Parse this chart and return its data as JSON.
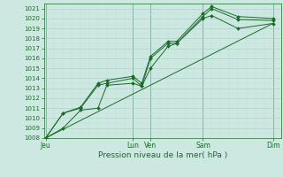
{
  "bg_color": "#cce8e0",
  "grid_color_major": "#aacccc",
  "grid_color_minor": "#bbdddd",
  "line_color": "#1a6b2a",
  "marker_color": "#1a6b2a",
  "xlabel": "Pression niveau de la mer( hPa )",
  "ylim": [
    1008,
    1021.5
  ],
  "yticks": [
    1008,
    1009,
    1010,
    1011,
    1012,
    1013,
    1014,
    1015,
    1016,
    1017,
    1018,
    1019,
    1020,
    1021
  ],
  "xtick_labels": [
    "Jeu",
    "",
    "Lun",
    "Ven",
    "",
    "Sam",
    "",
    "Dim"
  ],
  "xtick_positions": [
    0,
    3,
    5,
    6,
    8,
    9,
    11,
    13
  ],
  "vline_positions": [
    0,
    5,
    6,
    9,
    13
  ],
  "xlim": [
    -0.1,
    13.5
  ],
  "series1_x": [
    0,
    1,
    2,
    3,
    3.5,
    5,
    5.5,
    6,
    7,
    7.5,
    9,
    9.5,
    11,
    13
  ],
  "series1_y": [
    1008.0,
    1009.0,
    1010.8,
    1011.0,
    1013.3,
    1013.5,
    1013.2,
    1015.0,
    1017.2,
    1017.5,
    1020.0,
    1020.3,
    1019.0,
    1019.5
  ],
  "series2_x": [
    0,
    1,
    2,
    3,
    3.5,
    5,
    5.5,
    6,
    7,
    7.5,
    9,
    9.5,
    11,
    13
  ],
  "series2_y": [
    1008.0,
    1010.5,
    1011.0,
    1013.3,
    1013.5,
    1014.0,
    1013.2,
    1016.0,
    1017.5,
    1017.5,
    1020.2,
    1021.0,
    1019.9,
    1019.8
  ],
  "series3_x": [
    0,
    1,
    2,
    3,
    3.5,
    5,
    5.5,
    6,
    7,
    7.5,
    9,
    9.5,
    11,
    13
  ],
  "series3_y": [
    1008.0,
    1010.5,
    1011.1,
    1013.5,
    1013.8,
    1014.2,
    1013.5,
    1016.2,
    1017.7,
    1017.7,
    1020.5,
    1021.2,
    1020.2,
    1020.0
  ],
  "trend_x": [
    0,
    13
  ],
  "trend_y": [
    1008.0,
    1019.5
  ]
}
